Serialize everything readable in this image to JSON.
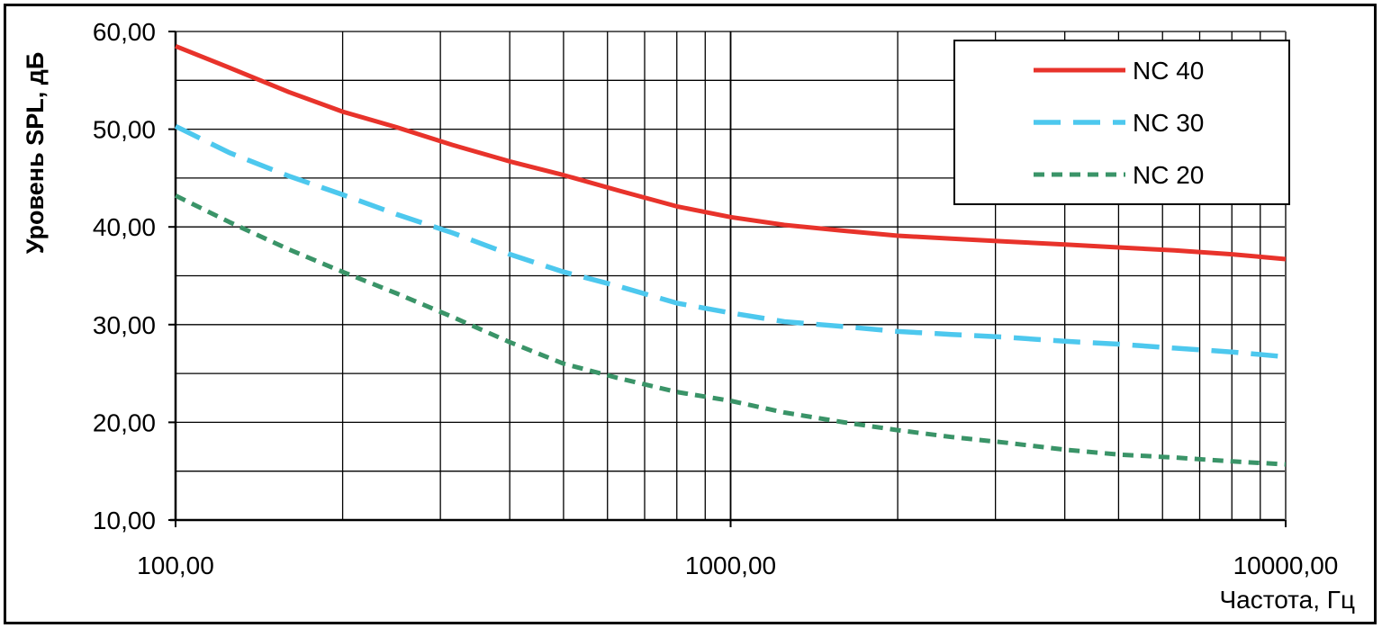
{
  "chart_data": {
    "type": "line",
    "title": "",
    "xlabel": "Частота, Гц",
    "ylabel": "Уровень SPL, дБ",
    "xscale": "log",
    "xlim": [
      100,
      10000
    ],
    "ylim": [
      10,
      60
    ],
    "x_tick_labels": [
      "100,00",
      "1000,00",
      "10000,00"
    ],
    "y_tick_labels": [
      "10,00",
      "20,00",
      "30,00",
      "40,00",
      "50,00",
      "60,00"
    ],
    "grid": true,
    "legend_position": "top-right",
    "series": [
      {
        "name": "NC 40",
        "color": "#e8332b",
        "style": "solid",
        "x": [
          100,
          125,
          160,
          200,
          250,
          315,
          400,
          500,
          630,
          800,
          1000,
          1250,
          1600,
          2000,
          2500,
          3150,
          4000,
          5000,
          6300,
          8000,
          10000
        ],
        "y": [
          58.5,
          56.3,
          53.8,
          51.8,
          50.2,
          48.4,
          46.7,
          45.3,
          43.7,
          42.1,
          41.0,
          40.2,
          39.6,
          39.1,
          38.8,
          38.5,
          38.2,
          37.9,
          37.6,
          37.2,
          36.7
        ]
      },
      {
        "name": "NC 30",
        "color": "#4dc8ee",
        "style": "dashed",
        "x": [
          100,
          125,
          160,
          200,
          250,
          315,
          400,
          500,
          630,
          800,
          1000,
          1250,
          1600,
          2000,
          2500,
          3150,
          4000,
          5000,
          6300,
          8000,
          10000
        ],
        "y": [
          50.3,
          47.6,
          45.2,
          43.3,
          41.3,
          39.4,
          37.2,
          35.4,
          33.9,
          32.2,
          31.2,
          30.3,
          29.8,
          29.3,
          29.0,
          28.7,
          28.3,
          28.0,
          27.6,
          27.2,
          26.7
        ]
      },
      {
        "name": "NC 20",
        "color": "#3a9468",
        "style": "dotted",
        "x": [
          100,
          125,
          160,
          200,
          250,
          315,
          400,
          500,
          630,
          800,
          1000,
          1250,
          1600,
          2000,
          2500,
          3150,
          4000,
          5000,
          6300,
          8000,
          10000
        ],
        "y": [
          43.2,
          40.5,
          37.7,
          35.4,
          33.2,
          30.8,
          28.2,
          26.0,
          24.5,
          23.1,
          22.2,
          21.0,
          20.0,
          19.2,
          18.5,
          17.9,
          17.2,
          16.7,
          16.4,
          16.0,
          15.7
        ]
      }
    ]
  }
}
